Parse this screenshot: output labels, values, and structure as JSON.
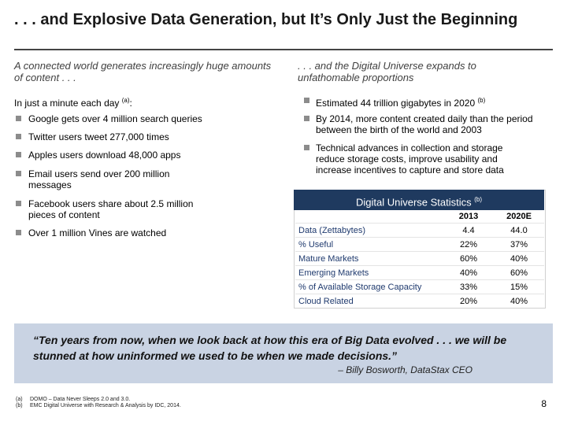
{
  "title": ". . . and Explosive Data Generation, but It’s Only Just the Beginning",
  "left": {
    "subhead": "A connected world generates increasingly huge amounts of content . . .",
    "intro": "In just a minute each day",
    "intro_sup": "(a)",
    "intro_colon": ":",
    "items": [
      "Google gets over 4 million search queries",
      "Twitter users tweet 277,000 times",
      "Apples users download 48,000 apps",
      "Email users send over 200 million messages",
      "Facebook users share about 2.5 million pieces of content",
      "Over 1 million Vines are watched"
    ]
  },
  "right": {
    "subhead": ". . . and the Digital Universe expands to unfathomable proportions",
    "item0": "Estimated 44 trillion gigabytes in 2020",
    "item0_sup": "(b)",
    "item1": "By 2014, more content created daily than the period between the birth of the world and 2003",
    "item2": "Technical advances in collection and storage reduce storage costs, improve usability and increase incentives to capture and store data"
  },
  "stats": {
    "header": "Digital Universe Statistics",
    "header_sup": "(b)",
    "col1": "2013",
    "col2": "2020E",
    "rows": [
      {
        "label": "Data (Zettabytes)",
        "v1": "4.4",
        "v2": "44.0"
      },
      {
        "label": "% Useful",
        "v1": "22%",
        "v2": "37%"
      },
      {
        "label": "Mature Markets",
        "v1": "60%",
        "v2": "40%"
      },
      {
        "label": "Emerging Markets",
        "v1": "40%",
        "v2": "60%"
      },
      {
        "label": "% of Available Storage Capacity",
        "v1": "33%",
        "v2": "15%"
      },
      {
        "label": "Cloud Related",
        "v1": "20%",
        "v2": "40%"
      }
    ]
  },
  "quote": {
    "text": "“Ten years from now, when we look back at how this era of Big Data evolved . . . we will be stunned at how uninformed we used to be when we made decisions.”",
    "attribution": "– Billy Bosworth, DataStax CEO"
  },
  "footnotes": [
    {
      "mark": "(a)",
      "text": "DOMO – Data Never Sleeps 2.0 and 3.0."
    },
    {
      "mark": "(b)",
      "text": "EMC Digital Universe with Research & Analysis by IDC, 2014."
    }
  ],
  "page_number": "8",
  "colors": {
    "header_bg": "#1f3a5f",
    "quote_bg": "#c9d3e3",
    "bullet": "#8c8c8c"
  }
}
